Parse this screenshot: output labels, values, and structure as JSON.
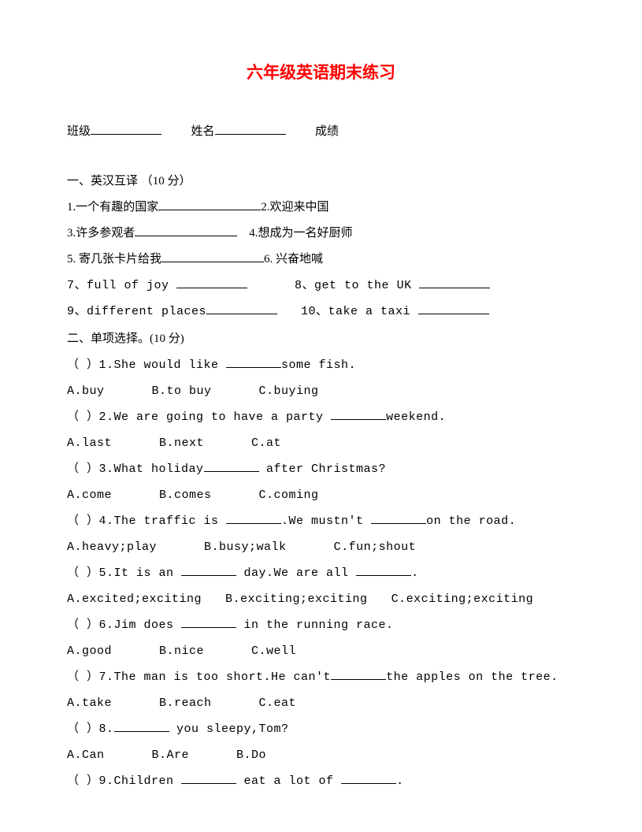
{
  "title": "六年级英语期末练习",
  "header": {
    "class_label": "班级",
    "name_label": "姓名",
    "score_label": "成绩"
  },
  "section1": {
    "title": "一、英汉互译 （10 分）",
    "items": {
      "i1": "1.一个有趣的国家",
      "i2": "2.欢迎来中国",
      "i3": "3.许多参观者",
      "i4": "4.想成为一名好厨师",
      "i5": "5. 寄几张卡片给我",
      "i6": "6. 兴奋地喊",
      "i7": "7、full of joy",
      "i8": "8、get to the UK",
      "i9": "9、different places",
      "i10": "10、take a taxi"
    }
  },
  "section2": {
    "title": "二、单项选择。(10 分)",
    "q1": {
      "stem_a": "（     ）1.She would like ",
      "stem_b": "some fish.",
      "optA": "A.buy",
      "optB": "B.to buy",
      "optC": "C.buying"
    },
    "q2": {
      "stem_a": "（     ）2.We are going to have a party ",
      "stem_b": "weekend.",
      "optA": "A.last",
      "optB": "B.next",
      "optC": "C.at"
    },
    "q3": {
      "stem_a": "（     ）3.What holiday",
      "stem_b": " after Christmas?",
      "optA": "A.come",
      "optB": "B.comes",
      "optC": "C.coming"
    },
    "q4": {
      "stem_a": "（     ）4.The traffic is ",
      "stem_b": ".We mustn't ",
      "stem_c": "on the road.",
      "optA": "A.heavy;play",
      "optB": "B.busy;walk",
      "optC": "C.fun;shout"
    },
    "q5": {
      "stem_a": "（     ）5.It is an ",
      "stem_b": " day.We are all ",
      "stem_c": ".",
      "optA": "A.excited;exciting",
      "optB": "B.exciting;exciting",
      "optC": "C.exciting;exciting"
    },
    "q6": {
      "stem_a": "（     ）6.Jim does ",
      "stem_b": " in the running race.",
      "optA": "A.good",
      "optB": "B.nice",
      "optC": "C.well"
    },
    "q7": {
      "stem_a": "（     ）7.The man is too short.He can't",
      "stem_b": "the apples on the tree.",
      "optA": "A.take",
      "optB": "B.reach",
      "optC": "C.eat"
    },
    "q8": {
      "stem_a": "（     ）8.",
      "stem_b": " you sleepy,Tom?",
      "optA": "A.Can",
      "optB": "B.Are",
      "optC": "B.Do"
    },
    "q9": {
      "stem_a": "（     ）9.Children ",
      "stem_b": " eat a lot of ",
      "stem_c": "."
    }
  }
}
